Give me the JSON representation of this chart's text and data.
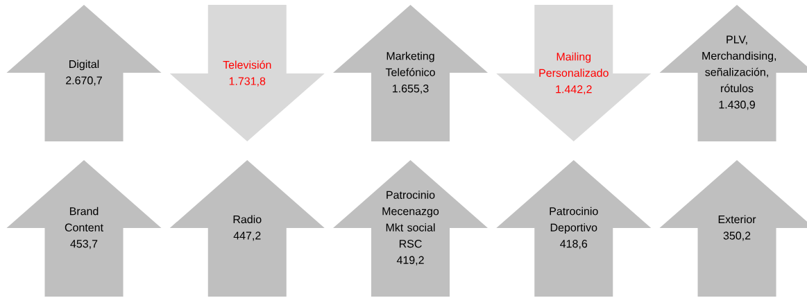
{
  "chart_data": {
    "type": "other",
    "categories": [
      "Digital",
      "Televisión",
      "Marketing Telefónico",
      "Mailing Personalizado",
      "PLV, Merchandising, señalización, rótulos",
      "Brand Content",
      "Radio",
      "Patrocinio Mecenazgo Mkt social RSC",
      "Patrocinio Deportivo",
      "Exterior"
    ],
    "series": [
      {
        "color": "#bfbfbf",
        "values": [
          2670.7,
          null,
          1655.3,
          null,
          1430.9,
          453.7,
          447.2,
          419.2,
          418.6,
          350.2
        ],
        "value_labels": [
          "2.670,7",
          null,
          "1.655,3",
          null,
          "1.430,9",
          "453,7",
          "447,2",
          "419,2",
          "418,6",
          "350,2"
        ]
      },
      {
        "color": "#d9d9d9",
        "values": [
          null,
          1731.8,
          null,
          1442.2,
          null,
          null,
          null,
          null,
          null,
          null
        ],
        "value_labels": [
          null,
          "1.731,8",
          null,
          "1.442,2",
          null,
          null,
          null,
          null,
          null,
          null
        ]
      }
    ]
  }
}
